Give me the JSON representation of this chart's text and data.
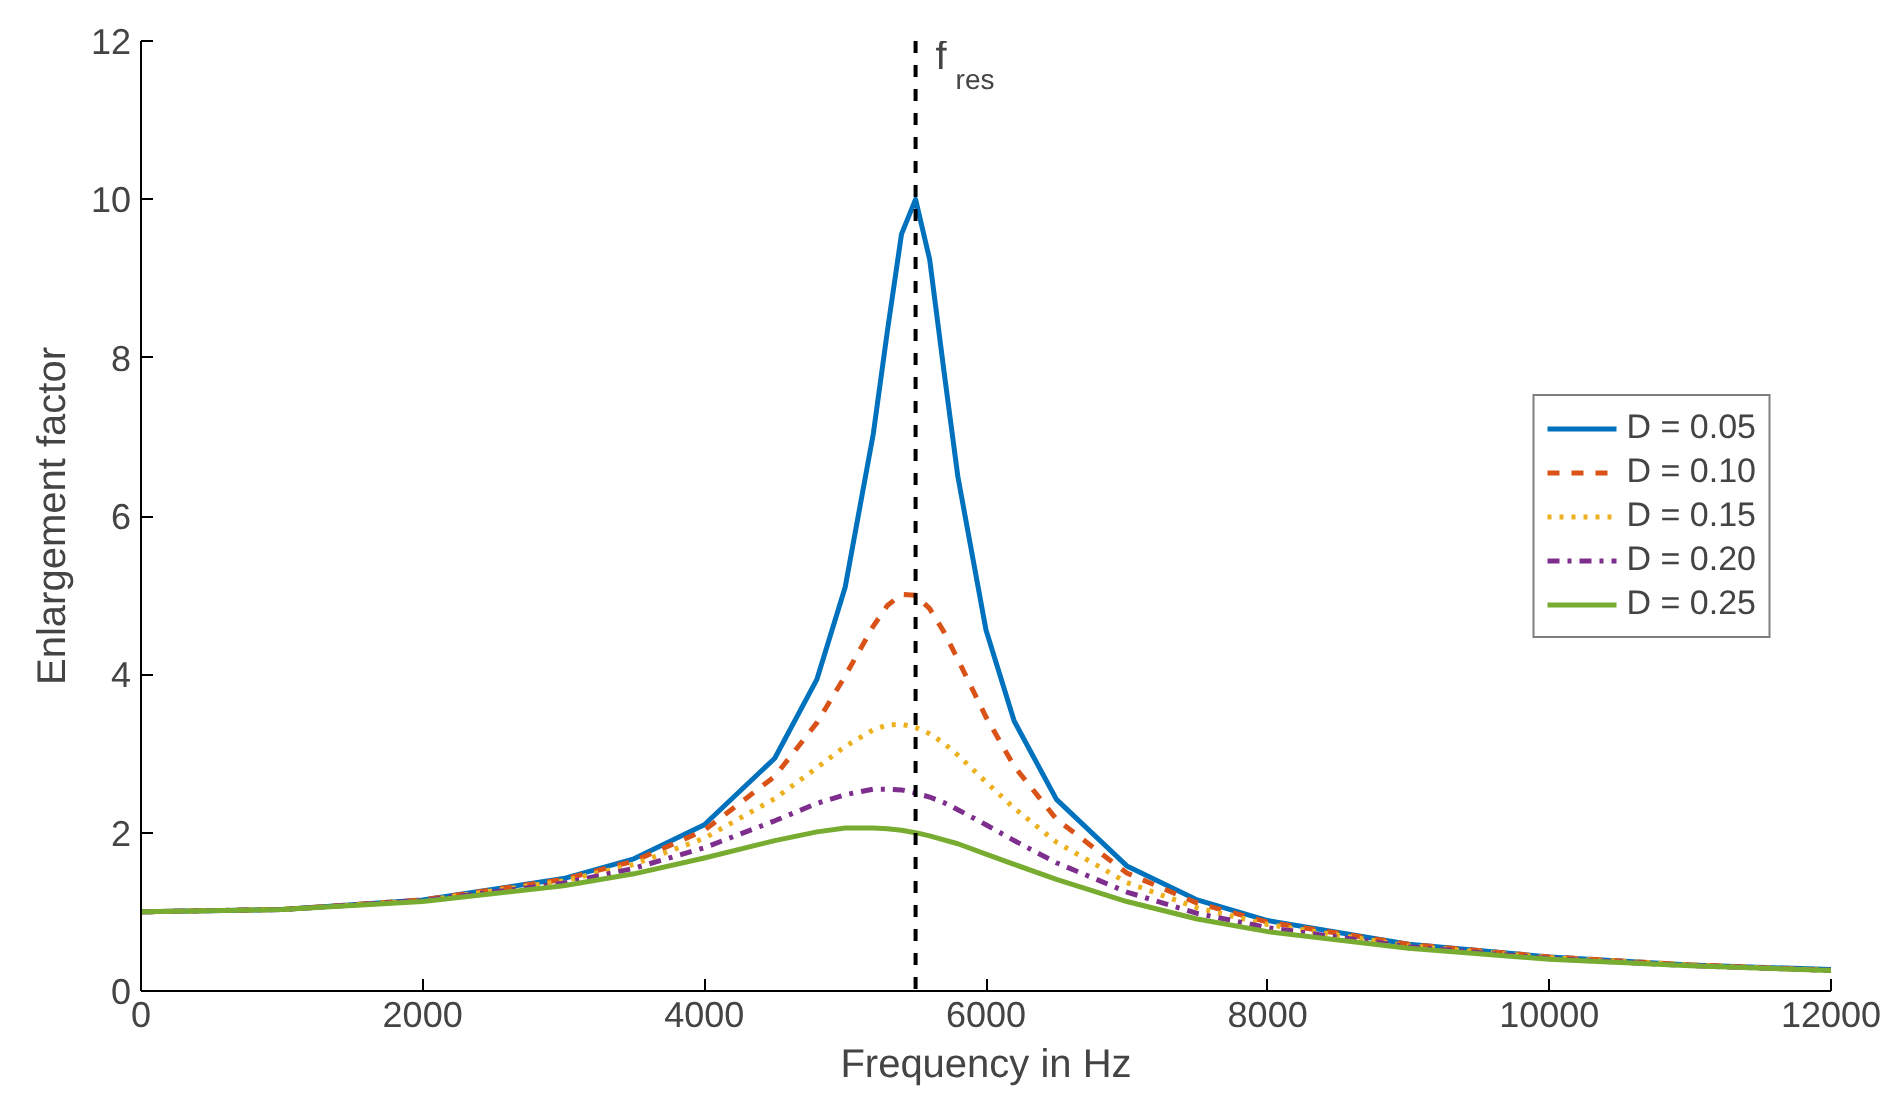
{
  "chart_data": {
    "type": "line",
    "xlabel": "Frequency in Hz",
    "ylabel": "Enlargement factor",
    "x": [
      0,
      1000,
      2000,
      3000,
      3500,
      4000,
      4500,
      4800,
      5000,
      5200,
      5300,
      5400,
      5500,
      5600,
      5700,
      5800,
      6000,
      6200,
      6500,
      7000,
      7500,
      8000,
      9000,
      10000,
      11000,
      12000
    ],
    "series": [
      {
        "name": "D = 0.05",
        "color": "#0072bd",
        "line_style": "solid",
        "values": [
          1.0,
          1.03,
          1.15,
          1.42,
          1.67,
          2.1,
          2.94,
          3.94,
          5.1,
          7.04,
          8.34,
          9.56,
          10.0,
          9.24,
          7.85,
          6.5,
          4.56,
          3.41,
          2.42,
          1.58,
          1.15,
          0.89,
          0.59,
          0.43,
          0.33,
          0.27
        ]
      },
      {
        "name": "D = 0.10",
        "color": "#d95319",
        "line_style": "dashed",
        "values": [
          1.0,
          1.03,
          1.15,
          1.41,
          1.64,
          2.03,
          2.71,
          3.39,
          3.98,
          4.61,
          4.87,
          5.01,
          5.0,
          4.83,
          4.54,
          4.19,
          3.46,
          2.84,
          2.17,
          1.49,
          1.11,
          0.87,
          0.59,
          0.43,
          0.33,
          0.26
        ]
      },
      {
        "name": "D = 0.15",
        "color": "#edb120",
        "line_style": "dotted",
        "values": [
          1.0,
          1.03,
          1.14,
          1.39,
          1.6,
          1.93,
          2.43,
          2.82,
          3.09,
          3.3,
          3.36,
          3.37,
          3.33,
          3.25,
          3.13,
          2.98,
          2.64,
          2.31,
          1.88,
          1.37,
          1.05,
          0.84,
          0.57,
          0.42,
          0.33,
          0.26
        ]
      },
      {
        "name": "D = 0.20",
        "color": "#7e2f8e",
        "line_style": "dashdot",
        "values": [
          1.0,
          1.03,
          1.14,
          1.36,
          1.55,
          1.81,
          2.15,
          2.37,
          2.48,
          2.55,
          2.55,
          2.54,
          2.5,
          2.45,
          2.38,
          2.29,
          2.1,
          1.9,
          1.62,
          1.25,
          0.98,
          0.8,
          0.56,
          0.41,
          0.32,
          0.26
        ]
      },
      {
        "name": "D = 0.25",
        "color": "#77ac30",
        "line_style": "solid",
        "values": [
          1.0,
          1.03,
          1.13,
          1.33,
          1.48,
          1.68,
          1.9,
          2.01,
          2.06,
          2.06,
          2.05,
          2.03,
          2.0,
          1.96,
          1.91,
          1.86,
          1.73,
          1.6,
          1.41,
          1.13,
          0.91,
          0.75,
          0.54,
          0.4,
          0.32,
          0.26
        ]
      }
    ],
    "xlim": [
      0,
      12000
    ],
    "xticks": [
      0,
      2000,
      4000,
      6000,
      8000,
      10000,
      12000
    ],
    "ylim": [
      0,
      12
    ],
    "yticks": [
      0,
      2,
      4,
      6,
      8,
      10,
      12
    ],
    "ref_lines": [
      {
        "axis": "x",
        "value": 5500,
        "label": "f$_{res}$",
        "color": "#000000",
        "line_style": "dashed"
      }
    ],
    "grid": false,
    "legend": "center right"
  }
}
